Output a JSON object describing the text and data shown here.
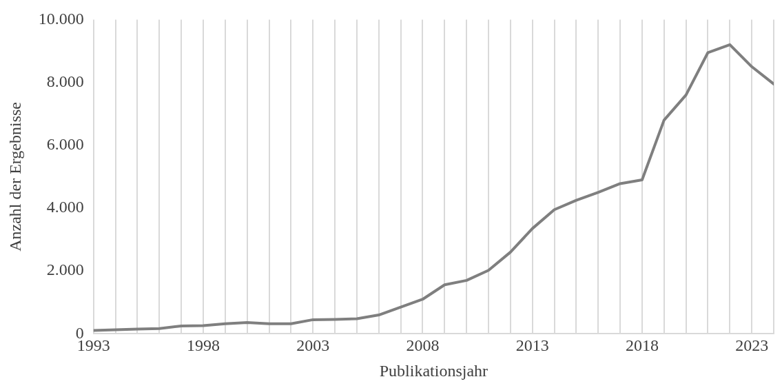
{
  "chart_data": {
    "type": "line",
    "xlabel": "Publikationsjahr",
    "ylabel": "Anzahl der Ergebnisse",
    "x": [
      1993,
      1994,
      1995,
      1996,
      1997,
      1998,
      1999,
      2000,
      2001,
      2002,
      2003,
      2004,
      2005,
      2006,
      2007,
      2008,
      2009,
      2010,
      2011,
      2012,
      2013,
      2014,
      2015,
      2016,
      2017,
      2018,
      2019,
      2020,
      2021,
      2022,
      2023,
      2024
    ],
    "series": [
      {
        "color": "#7f7f7f",
        "values": [
          110,
          130,
          150,
          170,
          250,
          260,
          320,
          360,
          320,
          320,
          450,
          460,
          480,
          600,
          850,
          1100,
          1560,
          1700,
          2020,
          2600,
          3350,
          3950,
          4250,
          4500,
          4780,
          4900,
          6800,
          7600,
          8950,
          9200,
          8500,
          7950
        ]
      }
    ],
    "xlim": [
      1993,
      2024
    ],
    "xticks": [
      1993,
      {
        "value": 1994,
        "label": null
      },
      {
        "value": 1995,
        "label": null
      },
      {
        "value": 1996,
        "label": null
      },
      {
        "value": 1997,
        "label": null
      },
      1998,
      {
        "value": 1999,
        "label": null
      },
      {
        "value": 2000,
        "label": null
      },
      {
        "value": 2001,
        "label": null
      },
      {
        "value": 2002,
        "label": null
      },
      2003,
      {
        "value": 2004,
        "label": null
      },
      {
        "value": 2005,
        "label": null
      },
      {
        "value": 2006,
        "label": null
      },
      {
        "value": 2007,
        "label": null
      },
      2008,
      {
        "value": 2009,
        "label": null
      },
      {
        "value": 2010,
        "label": null
      },
      {
        "value": 2011,
        "label": null
      },
      {
        "value": 2012,
        "label": null
      },
      2013,
      {
        "value": 2014,
        "label": null
      },
      {
        "value": 2015,
        "label": null
      },
      {
        "value": 2016,
        "label": null
      },
      {
        "value": 2017,
        "label": null
      },
      2018,
      {
        "value": 2019,
        "label": null
      },
      {
        "value": 2020,
        "label": null
      },
      {
        "value": 2021,
        "label": null
      },
      {
        "value": 2022,
        "label": null
      },
      2023,
      {
        "value": 2024,
        "label": null
      }
    ],
    "ylim": [
      0,
      10000
    ],
    "yticks": [
      0,
      {
        "value": 2000,
        "label": "2.000"
      },
      {
        "value": 4000,
        "label": "4.000"
      },
      {
        "value": 6000,
        "label": "6.000"
      },
      {
        "value": 8000,
        "label": "8.000"
      },
      {
        "value": 10000,
        "label": "10.000"
      }
    ],
    "grid": "x",
    "legend": false,
    "marker": "none",
    "line_style": "solid"
  }
}
